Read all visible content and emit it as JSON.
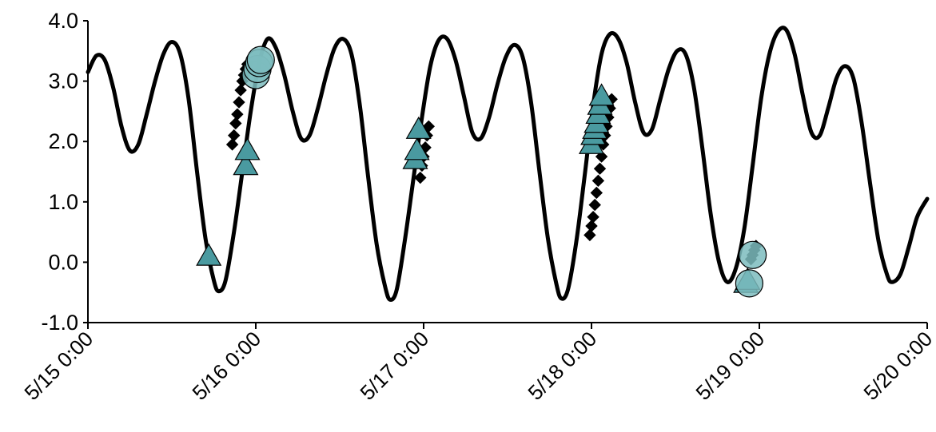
{
  "chart_data": {
    "type": "line",
    "title": "",
    "xlabel": "",
    "ylabel": "",
    "x_ticks": [
      "5/15 0:00",
      "5/16 0:00",
      "5/17 0:00",
      "5/18 0:00",
      "5/19 0:00",
      "5/20 0:00"
    ],
    "y_ticks": [
      "4.0",
      "3.0",
      "2.0",
      "1.0",
      "0.0",
      "-1.0"
    ],
    "ylim": [
      -1.0,
      4.0
    ],
    "xlim_days": [
      0,
      5
    ],
    "grid": false,
    "legend": "none",
    "colors": {
      "line": "#000000",
      "triangle_fill": "#4a9aa0",
      "circle_fill": "#7dbcbe",
      "diamond_fill": "#000000"
    },
    "series": [
      {
        "kind": "line",
        "points": [
          [
            0.0,
            3.15
          ],
          [
            0.05,
            3.42
          ],
          [
            0.1,
            3.35
          ],
          [
            0.15,
            2.9
          ],
          [
            0.2,
            2.25
          ],
          [
            0.25,
            1.85
          ],
          [
            0.3,
            1.95
          ],
          [
            0.35,
            2.45
          ],
          [
            0.4,
            3.0
          ],
          [
            0.45,
            3.45
          ],
          [
            0.5,
            3.65
          ],
          [
            0.55,
            3.45
          ],
          [
            0.6,
            2.7
          ],
          [
            0.65,
            1.5
          ],
          [
            0.7,
            0.4
          ],
          [
            0.75,
            -0.3
          ],
          [
            0.78,
            -0.48
          ],
          [
            0.82,
            -0.3
          ],
          [
            0.87,
            0.5
          ],
          [
            0.92,
            1.5
          ],
          [
            0.97,
            2.5
          ],
          [
            1.02,
            3.3
          ],
          [
            1.07,
            3.7
          ],
          [
            1.12,
            3.55
          ],
          [
            1.17,
            3.1
          ],
          [
            1.22,
            2.5
          ],
          [
            1.27,
            2.05
          ],
          [
            1.32,
            2.1
          ],
          [
            1.37,
            2.55
          ],
          [
            1.42,
            3.1
          ],
          [
            1.47,
            3.55
          ],
          [
            1.52,
            3.7
          ],
          [
            1.57,
            3.45
          ],
          [
            1.62,
            2.6
          ],
          [
            1.67,
            1.4
          ],
          [
            1.72,
            0.3
          ],
          [
            1.77,
            -0.4
          ],
          [
            1.8,
            -0.62
          ],
          [
            1.84,
            -0.45
          ],
          [
            1.89,
            0.4
          ],
          [
            1.94,
            1.4
          ],
          [
            1.99,
            2.4
          ],
          [
            2.04,
            3.25
          ],
          [
            2.09,
            3.68
          ],
          [
            2.14,
            3.7
          ],
          [
            2.19,
            3.35
          ],
          [
            2.24,
            2.75
          ],
          [
            2.29,
            2.15
          ],
          [
            2.34,
            2.05
          ],
          [
            2.39,
            2.4
          ],
          [
            2.44,
            2.95
          ],
          [
            2.49,
            3.4
          ],
          [
            2.54,
            3.6
          ],
          [
            2.59,
            3.4
          ],
          [
            2.64,
            2.65
          ],
          [
            2.69,
            1.5
          ],
          [
            2.74,
            0.4
          ],
          [
            2.79,
            -0.35
          ],
          [
            2.82,
            -0.6
          ],
          [
            2.86,
            -0.45
          ],
          [
            2.91,
            0.35
          ],
          [
            2.96,
            1.45
          ],
          [
            3.01,
            2.6
          ],
          [
            3.06,
            3.45
          ],
          [
            3.11,
            3.78
          ],
          [
            3.16,
            3.7
          ],
          [
            3.21,
            3.3
          ],
          [
            3.26,
            2.65
          ],
          [
            3.31,
            2.15
          ],
          [
            3.36,
            2.2
          ],
          [
            3.41,
            2.7
          ],
          [
            3.46,
            3.2
          ],
          [
            3.51,
            3.5
          ],
          [
            3.56,
            3.45
          ],
          [
            3.61,
            2.9
          ],
          [
            3.66,
            1.9
          ],
          [
            3.71,
            0.8
          ],
          [
            3.76,
            0.0
          ],
          [
            3.81,
            -0.33
          ],
          [
            3.86,
            -0.1
          ],
          [
            3.91,
            0.55
          ],
          [
            3.96,
            1.6
          ],
          [
            4.01,
            2.7
          ],
          [
            4.06,
            3.45
          ],
          [
            4.11,
            3.82
          ],
          [
            4.16,
            3.85
          ],
          [
            4.21,
            3.45
          ],
          [
            4.26,
            2.75
          ],
          [
            4.31,
            2.15
          ],
          [
            4.36,
            2.1
          ],
          [
            4.41,
            2.55
          ],
          [
            4.46,
            3.05
          ],
          [
            4.51,
            3.25
          ],
          [
            4.56,
            3.05
          ],
          [
            4.61,
            2.3
          ],
          [
            4.66,
            1.3
          ],
          [
            4.71,
            0.35
          ],
          [
            4.76,
            -0.2
          ],
          [
            4.79,
            -0.33
          ],
          [
            4.84,
            -0.2
          ],
          [
            4.89,
            0.25
          ],
          [
            4.94,
            0.75
          ],
          [
            5.0,
            1.05
          ]
        ]
      },
      {
        "kind": "diamonds",
        "points": [
          [
            0.86,
            1.95
          ],
          [
            0.87,
            2.1
          ],
          [
            0.88,
            2.3
          ],
          [
            0.89,
            2.45
          ],
          [
            0.9,
            2.65
          ],
          [
            0.91,
            2.85
          ],
          [
            0.92,
            3.0
          ],
          [
            0.93,
            3.1
          ],
          [
            0.94,
            3.2
          ],
          [
            0.95,
            3.28
          ],
          [
            1.98,
            1.4
          ],
          [
            1.99,
            1.6
          ],
          [
            2.0,
            1.75
          ],
          [
            2.01,
            1.9
          ],
          [
            2.02,
            2.1
          ],
          [
            2.03,
            2.25
          ],
          [
            2.99,
            0.45
          ],
          [
            3.0,
            0.6
          ],
          [
            3.01,
            0.75
          ],
          [
            3.02,
            0.95
          ],
          [
            3.03,
            1.15
          ],
          [
            3.04,
            1.35
          ],
          [
            3.05,
            1.55
          ],
          [
            3.06,
            1.75
          ],
          [
            3.07,
            1.95
          ],
          [
            3.08,
            2.1
          ],
          [
            3.09,
            2.25
          ],
          [
            3.1,
            2.4
          ],
          [
            3.11,
            2.55
          ],
          [
            3.12,
            2.7
          ],
          [
            3.95,
            0.05
          ],
          [
            3.96,
            0.12
          ],
          [
            3.97,
            0.2
          ],
          [
            3.98,
            0.27
          ]
        ]
      },
      {
        "kind": "triangles",
        "points": [
          [
            0.72,
            0.1
          ],
          [
            0.94,
            1.6
          ],
          [
            0.95,
            1.85
          ],
          [
            1.95,
            1.7
          ],
          [
            1.96,
            1.85
          ],
          [
            1.97,
            2.2
          ],
          [
            3.0,
            1.95
          ],
          [
            3.01,
            2.1
          ],
          [
            3.02,
            2.2
          ],
          [
            3.03,
            2.3
          ],
          [
            3.04,
            2.45
          ],
          [
            3.05,
            2.6
          ],
          [
            3.06,
            2.75
          ],
          [
            3.92,
            -0.35
          ],
          [
            3.93,
            -0.3
          ]
        ]
      },
      {
        "kind": "circles",
        "points": [
          [
            1.0,
            3.1
          ],
          [
            1.01,
            3.2
          ],
          [
            1.02,
            3.3
          ],
          [
            1.03,
            3.35
          ],
          [
            3.94,
            -0.35
          ],
          [
            3.96,
            0.12
          ]
        ]
      }
    ]
  }
}
